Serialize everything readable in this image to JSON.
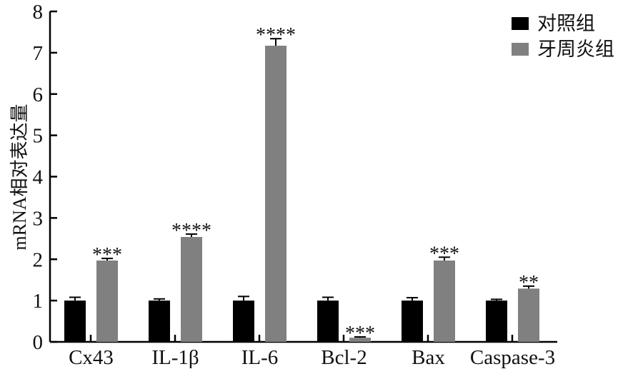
{
  "chart_data": {
    "type": "bar",
    "title": "",
    "xlabel": "",
    "ylabel": "mRNA相对表达量",
    "ylim": [
      0,
      8
    ],
    "yticks": [
      0,
      1,
      2,
      3,
      4,
      5,
      6,
      7,
      8
    ],
    "grid": false,
    "legend_position": "top-right",
    "categories": [
      "Cx43",
      "IL-1β",
      "IL-6",
      "Bcl-2",
      "Bax",
      "Caspase-3"
    ],
    "series": [
      {
        "name": "对照组",
        "color": "#000000",
        "values": [
          1.0,
          1.0,
          1.0,
          1.0,
          1.0,
          1.0
        ],
        "errors": [
          0.08,
          0.04,
          0.1,
          0.08,
          0.07,
          0.03
        ]
      },
      {
        "name": "牙周炎组",
        "color": "#808080",
        "values": [
          1.97,
          2.54,
          7.17,
          0.1,
          1.97,
          1.29
        ],
        "errors": [
          0.05,
          0.07,
          0.17,
          0.02,
          0.08,
          0.06
        ]
      }
    ],
    "significance": [
      "***",
      "****",
      "****",
      "***",
      "***",
      "**"
    ]
  }
}
